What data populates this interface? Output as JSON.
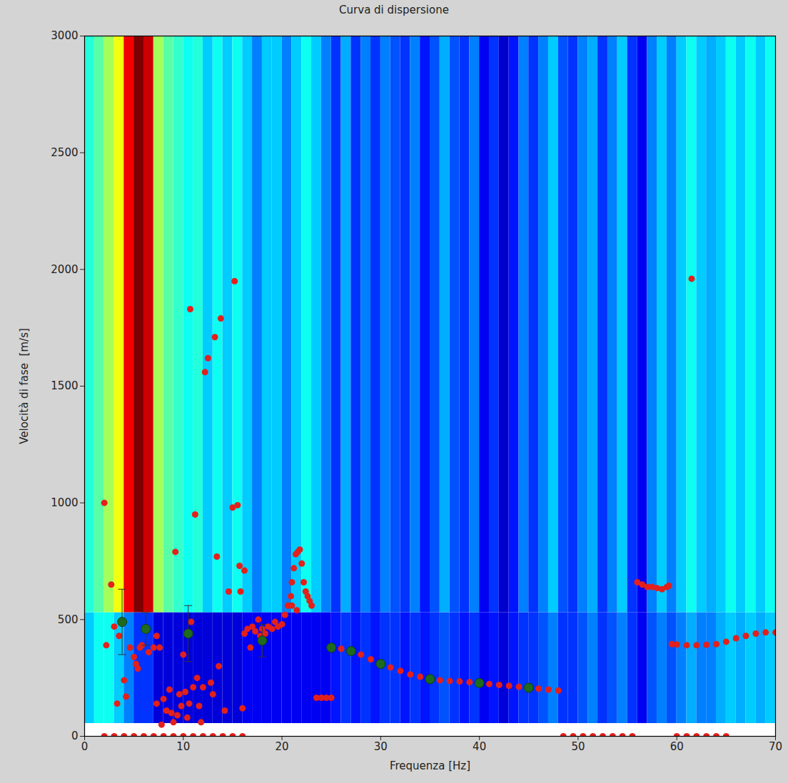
{
  "chart_data": {
    "type": "scatter",
    "title": "Curva di dispersione",
    "x_label": "Frequenza [Hz]",
    "y_label": "Velocità di fase  [m/s]",
    "xlim": [
      0,
      70
    ],
    "ylim": [
      0,
      3000
    ],
    "xticks": [
      0,
      10,
      20,
      30,
      40,
      50,
      60,
      70
    ],
    "yticks": [
      0,
      500,
      1000,
      1500,
      2000,
      2500,
      3000
    ],
    "spectrum": {
      "freq_edges": [
        0,
        1,
        2,
        3,
        4,
        5,
        6,
        7,
        8,
        9,
        10,
        11,
        12,
        13,
        14,
        15,
        16,
        17,
        18,
        19,
        20,
        21,
        22,
        23,
        24,
        25,
        26,
        27,
        28,
        29,
        30,
        31,
        32,
        33,
        34,
        35,
        36,
        37,
        38,
        39,
        40,
        41,
        42,
        43,
        44,
        45,
        46,
        47,
        48,
        49,
        50,
        51,
        52,
        53,
        54,
        55,
        56,
        57,
        58,
        59,
        60,
        61,
        62,
        63,
        64,
        65,
        66,
        67,
        68,
        69,
        70
      ],
      "velocity_edges": [
        55,
        530,
        3000
      ],
      "clim": [
        0,
        1
      ],
      "values": [
        [
          0.3,
          0.35,
          0.35,
          0.3,
          0.25,
          0.2,
          0.2,
          0.12,
          0.12,
          0.12,
          0.12,
          0.12,
          0.12,
          0.12,
          0.12,
          0.12,
          0.15,
          0.15,
          0.15,
          0.15,
          0.15,
          0.15,
          0.15,
          0.15,
          0.15,
          0.18,
          0.2,
          0.18,
          0.2,
          0.18,
          0.2,
          0.2,
          0.18,
          0.2,
          0.18,
          0.2,
          0.22,
          0.2,
          0.18,
          0.2,
          0.15,
          0.18,
          0.12,
          0.18,
          0.2,
          0.2,
          0.22,
          0.25,
          0.2,
          0.2,
          0.22,
          0.25,
          0.2,
          0.22,
          0.25,
          0.2,
          0.15,
          0.22,
          0.25,
          0.22,
          0.25,
          0.28,
          0.25,
          0.25,
          0.28,
          0.3,
          0.28,
          0.3,
          0.28,
          0.3
        ],
        [
          0.38,
          0.45,
          0.55,
          0.65,
          0.85,
          1.0,
          0.9,
          0.55,
          0.45,
          0.4,
          0.35,
          0.38,
          0.3,
          0.35,
          0.3,
          0.35,
          0.3,
          0.25,
          0.3,
          0.3,
          0.25,
          0.3,
          0.35,
          0.3,
          0.25,
          0.2,
          0.28,
          0.2,
          0.25,
          0.2,
          0.25,
          0.22,
          0.2,
          0.25,
          0.18,
          0.22,
          0.28,
          0.22,
          0.2,
          0.25,
          0.15,
          0.2,
          0.1,
          0.18,
          0.25,
          0.2,
          0.25,
          0.3,
          0.22,
          0.2,
          0.25,
          0.28,
          0.2,
          0.25,
          0.3,
          0.2,
          0.15,
          0.25,
          0.3,
          0.25,
          0.3,
          0.35,
          0.3,
          0.28,
          0.3,
          0.35,
          0.3,
          0.35,
          0.3,
          0.35
        ]
      ]
    },
    "series": [
      {
        "color": "#e3201b",
        "marker": "circle",
        "x": [
          2,
          2.2,
          2.7,
          3,
          3.3,
          3.5,
          3.7,
          4,
          4.2,
          4.6,
          5,
          5.2,
          5.4,
          5.6,
          5.8,
          6.5,
          7,
          7.3,
          7.6,
          7.3,
          7.8,
          8,
          8.3,
          8.6,
          8.8,
          9,
          9.2,
          9.4,
          9.6,
          9.8,
          10,
          10.2,
          10.4,
          10.6,
          10.7,
          10.8,
          11,
          11.2,
          11.4,
          11.6,
          11.8,
          12,
          12.2,
          12.5,
          12.8,
          13,
          13.2,
          13.4,
          13.6,
          13.8,
          14.2,
          14.6,
          15,
          15.2,
          15.5,
          15.7,
          15.8,
          16,
          16.2,
          16.2,
          16.5,
          16.8,
          17,
          17.3,
          17.6,
          17.8,
          18,
          18.3,
          18.6,
          19,
          19.3,
          19.6,
          20,
          20.3,
          20.6,
          20.9,
          21,
          21.2,
          21.4,
          21.6,
          21.8,
          22,
          22.2,
          22.4,
          22.6,
          22.8,
          23,
          21,
          21.5,
          23.5,
          24,
          24.5,
          25,
          25,
          26,
          27,
          28,
          29,
          30,
          31,
          32,
          33,
          34,
          35,
          36,
          37,
          38,
          39,
          40,
          41,
          42,
          43,
          44,
          45,
          46,
          47,
          48,
          56,
          56.5,
          57,
          57.5,
          58,
          58.5,
          59,
          59.2,
          59.5,
          60,
          61,
          62,
          63,
          64,
          65,
          66,
          67,
          68,
          69,
          70,
          61.5,
          2,
          3,
          4,
          5,
          6,
          7,
          8,
          9,
          10,
          11,
          12,
          13,
          14,
          15,
          16,
          48.5,
          49.5,
          50.5,
          51.5,
          52.5,
          53.5,
          54.5,
          55.5,
          60,
          61,
          62,
          63,
          64,
          65
        ],
        "values": [
          1000,
          390,
          650,
          470,
          140,
          430,
          490,
          240,
          170,
          380,
          340,
          310,
          290,
          380,
          390,
          360,
          380,
          430,
          380,
          140,
          50,
          160,
          110,
          200,
          100,
          60,
          790,
          90,
          180,
          130,
          350,
          190,
          80,
          140,
          1830,
          490,
          210,
          950,
          250,
          130,
          60,
          210,
          1560,
          1620,
          230,
          180,
          1710,
          770,
          300,
          1790,
          110,
          620,
          980,
          1950,
          990,
          730,
          620,
          120,
          710,
          440,
          460,
          380,
          470,
          450,
          500,
          430,
          460,
          440,
          470,
          460,
          490,
          470,
          480,
          520,
          560,
          600,
          660,
          720,
          780,
          790,
          800,
          740,
          660,
          620,
          600,
          580,
          560,
          560,
          540,
          165,
          165,
          165,
          165,
          380,
          375,
          365,
          350,
          330,
          310,
          295,
          280,
          265,
          255,
          245,
          240,
          237,
          235,
          232,
          228,
          224,
          220,
          216,
          212,
          208,
          204,
          200,
          196,
          660,
          650,
          640,
          640,
          635,
          630,
          640,
          645,
          395,
          393,
          390,
          390,
          392,
          395,
          405,
          420,
          430,
          440,
          445,
          445,
          1960,
          0,
          0,
          0,
          0,
          0,
          0,
          0,
          0,
          0,
          0,
          0,
          0,
          0,
          0,
          0,
          0,
          0,
          0,
          0,
          0,
          0,
          0,
          0,
          0,
          0,
          0,
          0,
          0,
          0
        ]
      },
      {
        "color": "#1e6b1e",
        "marker": "circle",
        "x": [
          3.8,
          6.2,
          10.5,
          18,
          25,
          27,
          30,
          35,
          40,
          45
        ],
        "values": [
          490,
          460,
          440,
          410,
          380,
          365,
          310,
          245,
          228,
          208
        ],
        "error_low": [
          350,
          390,
          320,
          340,
          null,
          null,
          null,
          null,
          null,
          null
        ],
        "error_high": [
          630,
          530,
          560,
          480,
          null,
          null,
          null,
          null,
          null,
          null
        ]
      }
    ]
  }
}
